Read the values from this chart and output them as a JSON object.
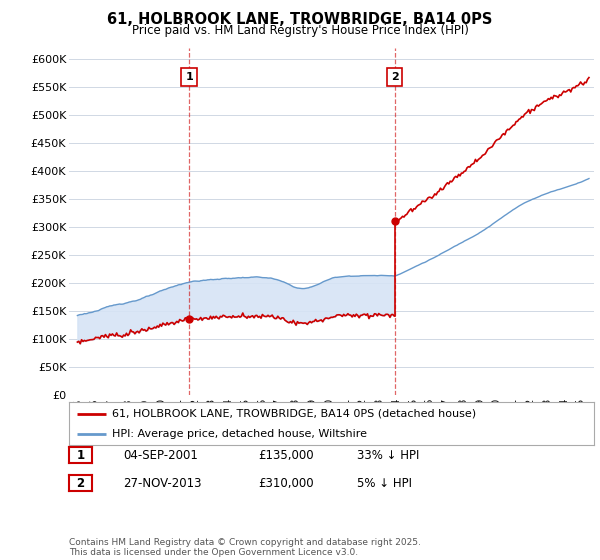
{
  "title_line1": "61, HOLBROOK LANE, TROWBRIDGE, BA14 0PS",
  "title_line2": "Price paid vs. HM Land Registry's House Price Index (HPI)",
  "background_color": "#ffffff",
  "grid_color": "#d0d8e4",
  "hpi_color": "#6699cc",
  "hpi_fill_color": "#d6e4f5",
  "price_color": "#cc0000",
  "legend_line1": "61, HOLBROOK LANE, TROWBRIDGE, BA14 0PS (detached house)",
  "legend_line2": "HPI: Average price, detached house, Wiltshire",
  "table_row1": [
    "1",
    "04-SEP-2001",
    "£135,000",
    "33% ↓ HPI"
  ],
  "table_row2": [
    "2",
    "27-NOV-2013",
    "£310,000",
    "5% ↓ HPI"
  ],
  "footer": "Contains HM Land Registry data © Crown copyright and database right 2025.\nThis data is licensed under the Open Government Licence v3.0.",
  "ylim": [
    0,
    620000
  ],
  "yticks": [
    0,
    50000,
    100000,
    150000,
    200000,
    250000,
    300000,
    350000,
    400000,
    450000,
    500000,
    550000,
    600000
  ],
  "sale1_year": 2001.67,
  "sale1_price": 135000,
  "sale2_year": 2013.92,
  "sale2_price": 310000,
  "xlim_left": 1994.5,
  "xlim_right": 2025.8
}
